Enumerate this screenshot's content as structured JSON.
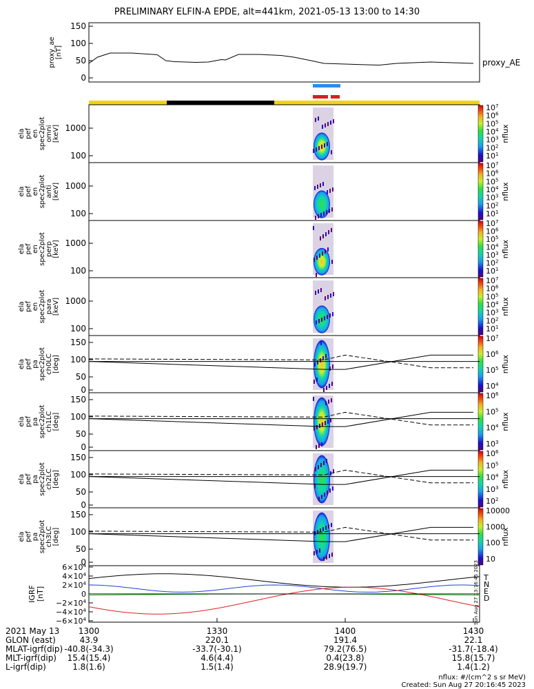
{
  "title": "PRELIMINARY ELFIN-A EPDE, alt=441km, 2021-05-13 13:00 to 14:30",
  "colors": {
    "gold": "#f2d21b",
    "blue_bar": "#2a8cf0",
    "red_bar": "#d61f1f",
    "field_T": "#000000",
    "field_N": "#1f3fdc",
    "field_E": "#1fc81f",
    "field_D": "#dc1f1f"
  },
  "chart_data": {
    "type": "line",
    "x_range": [
      "13:00",
      "14:30"
    ],
    "panels": [
      {
        "ylabel": [
          "proxy_ae",
          "[nT]"
        ],
        "yticks": [
          "150",
          "100",
          "50",
          "0"
        ],
        "ylim": [
          -10,
          155
        ],
        "series_label": "proxy_AE",
        "x": [
          "13:00",
          "13:02",
          "13:05",
          "13:10",
          "13:15",
          "13:16",
          "13:18",
          "13:20",
          "13:25",
          "13:28",
          "13:31",
          "13:32",
          "13:35",
          "13:40",
          "13:45",
          "13:48",
          "13:52",
          "13:55",
          "14:00",
          "14:05",
          "14:08",
          "14:12",
          "14:20",
          "14:25",
          "14:30"
        ],
        "values": [
          42,
          60,
          72,
          72,
          68,
          67,
          50,
          47,
          45,
          46,
          53,
          52,
          68,
          68,
          65,
          60,
          50,
          42,
          40,
          38,
          37,
          42,
          46,
          44,
          42
        ]
      },
      {
        "ylabel": [
          "ela",
          "pef",
          "en",
          "spec2plot",
          "omni",
          "[keV]"
        ],
        "yticks": [
          "1000",
          "100"
        ],
        "ztitle": "nflux",
        "zticks": [
          "10^7",
          "10^6",
          "10^5",
          "10^4",
          "10^3",
          "10^2",
          "10^1"
        ]
      },
      {
        "ylabel": [
          "ela",
          "pef",
          "en",
          "spec2plot",
          "anti",
          "[keV]"
        ],
        "yticks": [
          "1000",
          "100"
        ],
        "ztitle": "nflux",
        "zticks": [
          "10^7",
          "10^6",
          "10^5",
          "10^4",
          "10^3",
          "10^2",
          "10^1"
        ]
      },
      {
        "ylabel": [
          "ela",
          "pef",
          "en",
          "spec2plot",
          "perp",
          "[keV]"
        ],
        "yticks": [
          "1000",
          "100"
        ],
        "ztitle": "nflux",
        "zticks": [
          "10^7",
          "10^6",
          "10^5",
          "10^4",
          "10^3",
          "10^2",
          "10^1"
        ]
      },
      {
        "ylabel": [
          "ela",
          "pef",
          "en",
          "spec2plot",
          "para",
          "[keV]"
        ],
        "yticks": [
          "1000",
          "100"
        ],
        "ztitle": "nflux",
        "zticks": [
          "10^7",
          "10^6",
          "10^5",
          "10^4",
          "10^3",
          "10^2",
          "10^1"
        ]
      },
      {
        "ylabel": [
          "ela",
          "pef",
          "pa",
          "spec2plot",
          "ch0LC",
          "[deg]"
        ],
        "yticks": [
          "150",
          "100",
          "50",
          "0"
        ],
        "ztitle": "nflux",
        "zticks": [
          "10^7",
          "10^6",
          "10^5",
          "10^4"
        ]
      },
      {
        "ylabel": [
          "ela",
          "pef",
          "pa",
          "spec2plot",
          "ch1LC",
          "[deg]"
        ],
        "yticks": [
          "150",
          "100",
          "50",
          "0"
        ],
        "ztitle": "nflux",
        "zticks": [
          "10^6",
          "10^5",
          "10^4",
          "10^3"
        ]
      },
      {
        "ylabel": [
          "ela",
          "pef",
          "pa",
          "spec2plot",
          "ch2LC",
          "[deg]"
        ],
        "yticks": [
          "150",
          "100",
          "50",
          "0"
        ],
        "ztitle": "nflux",
        "zticks": [
          "10^6",
          "10^5",
          "10^4",
          "10^3",
          "10^2"
        ]
      },
      {
        "ylabel": [
          "ela",
          "pef",
          "pa",
          "spec2plot",
          "ch3LC",
          "[deg]"
        ],
        "yticks": [
          "150",
          "100",
          "50",
          "0"
        ],
        "ztitle": "nflux",
        "zticks": [
          "10000",
          "1000",
          "100",
          "10"
        ]
      },
      {
        "ylabel": [
          "IGRF",
          "[nT]"
        ],
        "yticks": [
          "6×10^4",
          "4×10^4",
          "2×10^4",
          "0",
          "−2×10^4",
          "−4×10^4",
          "−6×10^4"
        ],
        "legend": [
          "T",
          "N",
          "E",
          "D"
        ]
      }
    ],
    "pitch_lines": {
      "x": [
        "13:00",
        "13:55",
        "14:00",
        "14:20",
        "14:30"
      ],
      "loss_cone": [
        90,
        65,
        65,
        110,
        110
      ],
      "anti_loss_cone": [
        98,
        95,
        110,
        70,
        70
      ]
    }
  },
  "side_label": "Sun Aug 27 13:16:45 2023",
  "footer": {
    "row_labels": [
      "2021 May 13",
      "GLON (east)",
      "MLAT-igrf(dip)",
      "MLT-igrf(dip)",
      "L-igrf(dip)"
    ],
    "columns": [
      {
        "time": "1300",
        "values": [
          "43.9",
          "-40.8(-34.3)",
          "15.4(15.4)",
          "1.8(1.6)"
        ]
      },
      {
        "time": "1330",
        "values": [
          "220.1",
          "-33.7(-30.1)",
          "4.6(4.4)",
          "1.5(1.4)"
        ]
      },
      {
        "time": "1400",
        "values": [
          "191.4",
          "79.2(76.5)",
          "0.4(23.8)",
          "28.9(19.7)"
        ]
      },
      {
        "time": "1430",
        "values": [
          "22.1",
          "-31.7(-18.4)",
          "15.8(15.7)",
          "1.4(1.2)"
        ]
      }
    ],
    "units": "nflux: #/(cm^2 s sr MeV)",
    "created": "Created: Sun Aug 27 20:16:45 2023"
  }
}
